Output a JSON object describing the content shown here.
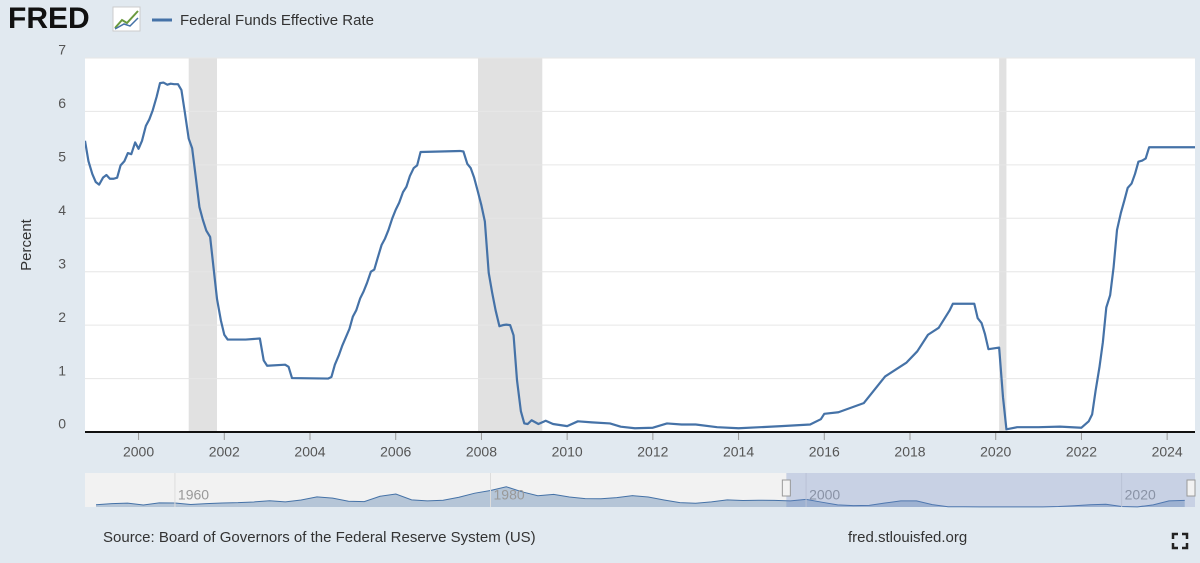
{
  "chart_data": {
    "type": "line",
    "logo": "FRED",
    "y_axis_label": "Percent",
    "source": "Source: Board of Governors of the Federal Reserve System (US)",
    "site": "fred.stlouisfed.org",
    "x": [
      1998.75,
      1998.83,
      1998.92,
      1999.0,
      1999.08,
      1999.17,
      1999.25,
      1999.33,
      1999.42,
      1999.5,
      1999.58,
      1999.67,
      1999.75,
      1999.83,
      1999.92,
      2000.0,
      2000.08,
      2000.17,
      2000.25,
      2000.33,
      2000.42,
      2000.5,
      2000.58,
      2000.67,
      2000.75,
      2000.83,
      2000.92,
      2001.0,
      2001.08,
      2001.17,
      2001.25,
      2001.33,
      2001.42,
      2001.5,
      2001.58,
      2001.67,
      2001.75,
      2001.83,
      2001.92,
      2002.0,
      2002.08,
      2002.5,
      2002.83,
      2002.92,
      2003.0,
      2003.42,
      2003.5,
      2003.58,
      2004.42,
      2004.5,
      2004.58,
      2004.67,
      2004.75,
      2004.83,
      2004.92,
      2005.0,
      2005.08,
      2005.17,
      2005.25,
      2005.33,
      2005.42,
      2005.5,
      2005.58,
      2005.67,
      2005.75,
      2005.83,
      2005.92,
      2006.0,
      2006.08,
      2006.17,
      2006.25,
      2006.33,
      2006.42,
      2006.5,
      2006.58,
      2007.5,
      2007.58,
      2007.67,
      2007.75,
      2007.83,
      2007.92,
      2008.0,
      2008.08,
      2008.17,
      2008.25,
      2008.33,
      2008.42,
      2008.5,
      2008.58,
      2008.67,
      2008.75,
      2008.83,
      2008.92,
      2009.0,
      2009.08,
      2009.17,
      2009.33,
      2009.5,
      2009.67,
      2010.0,
      2010.25,
      2010.58,
      2011.0,
      2011.25,
      2011.58,
      2012.0,
      2012.33,
      2012.67,
      2013.0,
      2013.5,
      2014.0,
      2014.5,
      2015.0,
      2015.67,
      2015.92,
      2016.0,
      2016.33,
      2016.92,
      2017.17,
      2017.42,
      2017.92,
      2018.17,
      2018.42,
      2018.67,
      2018.92,
      2019.0,
      2019.5,
      2019.58,
      2019.67,
      2019.75,
      2019.83,
      2020.08,
      2020.17,
      2020.25,
      2020.5,
      2021.0,
      2021.5,
      2022.0,
      2022.17,
      2022.25,
      2022.33,
      2022.42,
      2022.5,
      2022.58,
      2022.67,
      2022.75,
      2022.83,
      2022.92,
      2023.0,
      2023.08,
      2023.17,
      2023.25,
      2023.33,
      2023.42,
      2023.5,
      2023.58,
      2024.65
    ],
    "series": [
      {
        "name": "Federal Funds Effective Rate",
        "color": "#4572a7",
        "values": [
          5.45,
          5.07,
          4.83,
          4.68,
          4.63,
          4.76,
          4.81,
          4.74,
          4.74,
          4.76,
          4.99,
          5.07,
          5.22,
          5.2,
          5.42,
          5.3,
          5.45,
          5.73,
          5.85,
          6.02,
          6.27,
          6.53,
          6.54,
          6.5,
          6.52,
          6.51,
          6.51,
          6.4,
          5.98,
          5.49,
          5.31,
          4.8,
          4.21,
          3.97,
          3.77,
          3.65,
          3.07,
          2.49,
          2.09,
          1.82,
          1.73,
          1.73,
          1.75,
          1.34,
          1.24,
          1.26,
          1.22,
          1.01,
          1.0,
          1.03,
          1.26,
          1.43,
          1.61,
          1.76,
          1.93,
          2.16,
          2.28,
          2.5,
          2.63,
          2.79,
          3.0,
          3.04,
          3.26,
          3.5,
          3.62,
          3.78,
          4.0,
          4.16,
          4.29,
          4.49,
          4.59,
          4.79,
          4.94,
          4.99,
          5.24,
          5.26,
          5.25,
          5.02,
          4.94,
          4.76,
          4.49,
          4.24,
          3.94,
          2.98,
          2.61,
          2.28,
          1.98,
          2.0,
          2.01,
          2.0,
          1.81,
          0.97,
          0.39,
          0.16,
          0.15,
          0.22,
          0.15,
          0.21,
          0.15,
          0.11,
          0.2,
          0.18,
          0.16,
          0.1,
          0.07,
          0.08,
          0.16,
          0.14,
          0.14,
          0.09,
          0.07,
          0.09,
          0.11,
          0.14,
          0.24,
          0.34,
          0.37,
          0.54,
          0.79,
          1.04,
          1.3,
          1.51,
          1.82,
          1.95,
          2.27,
          2.4,
          2.4,
          2.13,
          2.04,
          1.83,
          1.55,
          1.58,
          0.65,
          0.05,
          0.09,
          0.09,
          0.1,
          0.08,
          0.2,
          0.33,
          0.77,
          1.21,
          1.68,
          2.33,
          2.56,
          3.08,
          3.78,
          4.1,
          4.33,
          4.57,
          4.65,
          4.83,
          5.06,
          5.08,
          5.12,
          5.33,
          5.33
        ]
      }
    ],
    "xlim": [
      1998.75,
      2024.65
    ],
    "xticks": [
      2000,
      2002,
      2004,
      2006,
      2008,
      2010,
      2012,
      2014,
      2016,
      2018,
      2020,
      2022,
      2024
    ],
    "ylim": [
      0,
      7
    ],
    "yticks": [
      0,
      1,
      2,
      3,
      4,
      5,
      6,
      7
    ],
    "grid": true,
    "recessions": [
      [
        2001.17,
        2001.83
      ],
      [
        2007.92,
        2009.42
      ],
      [
        2020.08,
        2020.25
      ]
    ],
    "recession_color": "#e1e1e1",
    "navigator": {
      "x": [
        1955,
        1956,
        1957,
        1958,
        1959,
        1960,
        1961,
        1962,
        1963,
        1964,
        1965,
        1966,
        1967,
        1968,
        1969,
        1970,
        1971,
        1972,
        1973,
        1974,
        1975,
        1976,
        1977,
        1978,
        1979,
        1980,
        1981,
        1982,
        1983,
        1984,
        1985,
        1986,
        1987,
        1988,
        1989,
        1990,
        1991,
        1992,
        1993,
        1994,
        1995,
        1996,
        1997,
        1998,
        1999,
        2000,
        2001,
        2002,
        2003,
        2004,
        2005,
        2006,
        2007,
        2008,
        2009,
        2010,
        2011,
        2012,
        2013,
        2014,
        2015,
        2016,
        2017,
        2018,
        2019,
        2020,
        2021,
        2022,
        2023,
        2024
      ],
      "values": [
        1.8,
        2.7,
        3.1,
        1.6,
        3.3,
        3.2,
        2.0,
        2.7,
        3.2,
        3.5,
        4.1,
        5.1,
        4.2,
        5.7,
        8.2,
        7.2,
        4.7,
        4.4,
        8.7,
        10.5,
        5.8,
        5.0,
        5.5,
        7.9,
        11.2,
        13.4,
        16.4,
        12.3,
        9.1,
        10.2,
        8.1,
        6.8,
        6.7,
        7.6,
        9.2,
        8.1,
        5.7,
        3.5,
        3.0,
        4.2,
        5.8,
        5.3,
        5.5,
        5.4,
        5.0,
        6.2,
        3.9,
        1.7,
        1.1,
        1.3,
        3.2,
        5.0,
        5.0,
        1.9,
        0.16,
        0.18,
        0.1,
        0.14,
        0.11,
        0.09,
        0.13,
        0.4,
        1.0,
        1.8,
        2.2,
        0.4,
        0.08,
        1.7,
        5.0,
        5.33
      ],
      "xlim": [
        1954.3,
        2024.65
      ],
      "ylim": [
        0,
        30
      ],
      "xticks": [
        1960,
        1980,
        2000,
        2020
      ]
    }
  }
}
